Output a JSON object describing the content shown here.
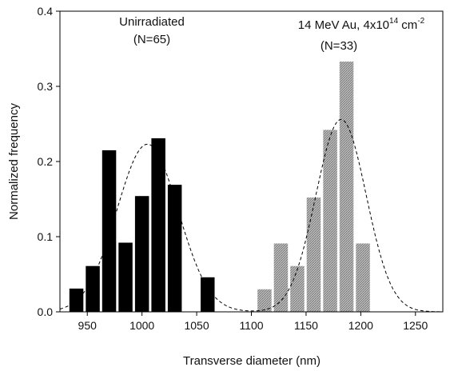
{
  "chart_data": {
    "type": "bar",
    "xlabel": "Transverse diameter (nm)",
    "ylabel": "Normalized frequency",
    "xlim": [
      925,
      1275
    ],
    "ylim": [
      0,
      0.4
    ],
    "x_ticks": [
      950,
      1000,
      1050,
      1100,
      1150,
      1200,
      1250
    ],
    "y_ticks": [
      0.0,
      0.1,
      0.2,
      0.3,
      0.4
    ],
    "y_tick_labels": [
      "0.0",
      "0.1",
      "0.2",
      "0.3",
      "0.4"
    ],
    "bin_width": 15,
    "grid": false,
    "legend": "none",
    "series": [
      {
        "label_line1": "Unirradiated",
        "label_line2": "(N=65)",
        "color": "#000000",
        "fill": "solid",
        "x": [
          940,
          955,
          970,
          985,
          1000,
          1015,
          1030,
          1045,
          1060
        ],
        "values": [
          0.031,
          0.061,
          0.215,
          0.092,
          0.154,
          0.231,
          0.169,
          0.0,
          0.046
        ],
        "gauss_fit": {
          "mean": 1005,
          "sigma": 28,
          "peak": 0.223
        }
      },
      {
        "label_line1_main": "14 MeV Au, 4x10",
        "label_line1_sup1": "14",
        "label_line1_unit": " cm",
        "label_line1_sup2": "-2",
        "label_line2": "(N=33)",
        "color": "#9a9a9a",
        "fill": "hatched",
        "x": [
          1112,
          1127,
          1142,
          1157,
          1172,
          1187,
          1202
        ],
        "values": [
          0.03,
          0.091,
          0.061,
          0.152,
          0.242,
          0.333,
          0.091
        ],
        "gauss_fit": {
          "mean": 1182,
          "sigma": 23,
          "peak": 0.256
        }
      }
    ]
  }
}
